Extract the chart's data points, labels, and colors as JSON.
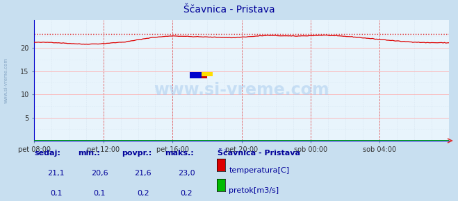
{
  "title": "Ščavnica - Pristava",
  "bg_color": "#c8dff0",
  "plot_bg_color": "#e8f4fc",
  "x_labels": [
    "pet 08:00",
    "pet 12:00",
    "pet 16:00",
    "pet 20:00",
    "sob 00:00",
    "sob 04:00"
  ],
  "ylim": [
    0,
    26.0
  ],
  "y_ticks": [
    5,
    10,
    15,
    20
  ],
  "temp_max": 23.0,
  "temp_min": 20.6,
  "temp_avg": 21.6,
  "temp_current": 21.1,
  "flow_max": 0.2,
  "flow_min": 0.1,
  "flow_avg": 0.2,
  "flow_current": 0.1,
  "legend_title": "Ščavnica - Pristava",
  "legend_items": [
    {
      "label": "temperatura[C]",
      "color": "#dd0000"
    },
    {
      "label": "pretok[m3/s]",
      "color": "#00bb00"
    }
  ],
  "footer_labels": [
    "sedaj:",
    "min.:",
    "povpr.:",
    "maks.:"
  ],
  "footer_temp": [
    "21,1",
    "20,6",
    "21,6",
    "23,0"
  ],
  "footer_flow": [
    "0,1",
    "0,1",
    "0,2",
    "0,2"
  ],
  "watermark": "www.si-vreme.com",
  "sidebar_text": "www.si-vreme.com",
  "title_color": "#000099",
  "label_color": "#000099",
  "spine_color": "#0000cc"
}
